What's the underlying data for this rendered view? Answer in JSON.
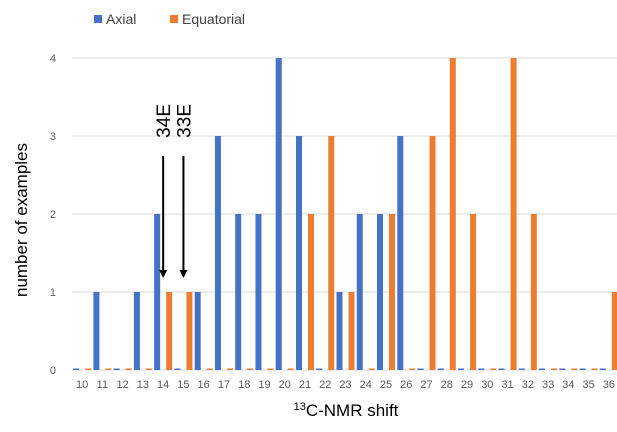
{
  "chart_data": {
    "type": "bar",
    "xlabel": {
      "superscript": "13",
      "text": "C-NMR shift"
    },
    "ylabel": "number of examples",
    "ylim": [
      0,
      4
    ],
    "yticks": [
      0,
      1,
      2,
      3,
      4
    ],
    "grid": "horizontal",
    "legend_position": "top-left",
    "categories": [
      "10",
      "11",
      "12",
      "13",
      "14",
      "15",
      "16",
      "17",
      "18",
      "19",
      "20",
      "21",
      "22",
      "23",
      "24",
      "25",
      "26",
      "27",
      "28",
      "29",
      "30",
      "31",
      "32",
      "33",
      "34",
      "35",
      "36"
    ],
    "series": [
      {
        "name": "Axial",
        "color": "#4472c4",
        "values": [
          0,
          1,
          0,
          1,
          2,
          0,
          1,
          3,
          2,
          2,
          4,
          3,
          0,
          1,
          2,
          2,
          3,
          0,
          0,
          0,
          0,
          0,
          0,
          0,
          0,
          0,
          0
        ]
      },
      {
        "name": "Equatorial",
        "color": "#ed7d31",
        "values": [
          0,
          0,
          0,
          0,
          1,
          1,
          0,
          0,
          0,
          0,
          0,
          2,
          3,
          1,
          0,
          2,
          0,
          3,
          4,
          2,
          0,
          4,
          2,
          0,
          0,
          0,
          1
        ]
      }
    ],
    "annotations": [
      {
        "label": "34E",
        "category": "14"
      },
      {
        "label": "33E",
        "category": "15"
      }
    ]
  }
}
